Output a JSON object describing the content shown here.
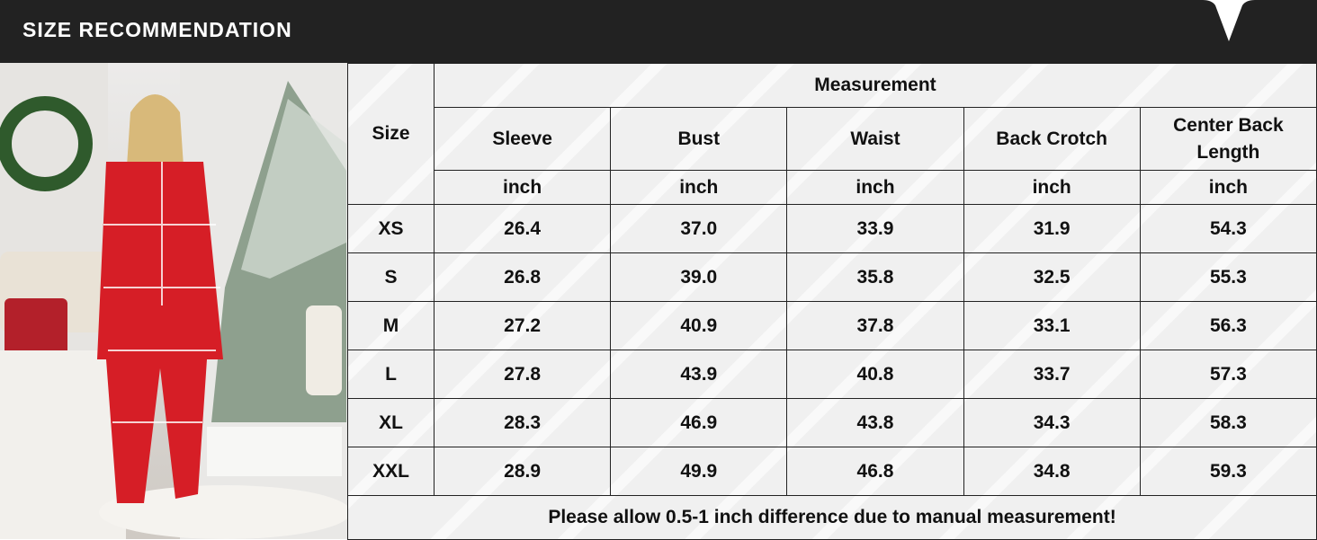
{
  "header": {
    "title": "SIZE RECOMMENDATION",
    "colors": {
      "bar": "#222222",
      "text": "#ffffff"
    }
  },
  "table": {
    "size_label": "Size",
    "group_label": "Measurement",
    "columns": [
      "Sleeve",
      "Bust",
      "Waist",
      "Back Crotch",
      "Center Back Length"
    ],
    "units": [
      "inch",
      "inch",
      "inch",
      "inch",
      "inch"
    ],
    "rows": [
      {
        "size": "XS",
        "values": [
          "26.4",
          "37.0",
          "33.9",
          "31.9",
          "54.3"
        ]
      },
      {
        "size": "S",
        "values": [
          "26.8",
          "39.0",
          "35.8",
          "32.5",
          "55.3"
        ]
      },
      {
        "size": "M",
        "values": [
          "27.2",
          "40.9",
          "37.8",
          "33.1",
          "56.3"
        ]
      },
      {
        "size": "L",
        "values": [
          "27.8",
          "43.9",
          "40.8",
          "33.7",
          "57.3"
        ]
      },
      {
        "size": "XL",
        "values": [
          "28.3",
          "46.9",
          "43.8",
          "34.3",
          "58.3"
        ]
      },
      {
        "size": "XXL",
        "values": [
          "28.9",
          "49.9",
          "46.8",
          "34.8",
          "59.3"
        ]
      }
    ],
    "note": "Please allow 0.5-1 inch difference due to manual measurement!"
  },
  "photo": {
    "subject": "woman in red Christmas-pattern hooded onesie beside decorated Christmas tree"
  }
}
